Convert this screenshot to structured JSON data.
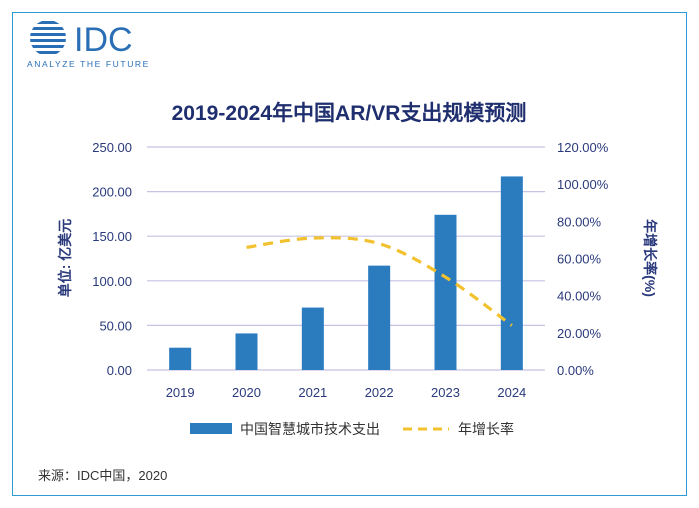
{
  "logo": {
    "brand": "IDC",
    "tagline": "ANALYZE THE FUTURE"
  },
  "source": "来源：IDC中国，2020",
  "colors": {
    "bar": "#2b7bbf",
    "line": "#f2c12e",
    "text": "#2a3a7c",
    "grid": "#c8c2e4",
    "frame": "#2e9bd6"
  },
  "chart_data": {
    "type": "bar",
    "title": "2019-2024年中国AR/VR支出规模预测",
    "categories": [
      "2019",
      "2020",
      "2021",
      "2022",
      "2023",
      "2024"
    ],
    "ylabel": "单位: 亿美元",
    "y2label": "年增长率(%)",
    "ylim": [
      0,
      250
    ],
    "y2lim": [
      0,
      120
    ],
    "yticks": [
      "0.00",
      "50.00",
      "100.00",
      "150.00",
      "200.00",
      "250.00"
    ],
    "y2ticks": [
      "0.00%",
      "20.00%",
      "40.00%",
      "60.00%",
      "80.00%",
      "100.00%",
      "120.00%"
    ],
    "grid": true,
    "legend_position": "bottom",
    "series": [
      {
        "name": "中国智慧城市技术支出",
        "kind": "bar",
        "axis": "left",
        "values": [
          25,
          41,
          70,
          117,
          174,
          217
        ]
      },
      {
        "name": "年增长率",
        "kind": "line",
        "style": "dashed",
        "axis": "right",
        "values": [
          null,
          66,
          71,
          68,
          50,
          24
        ]
      }
    ]
  }
}
